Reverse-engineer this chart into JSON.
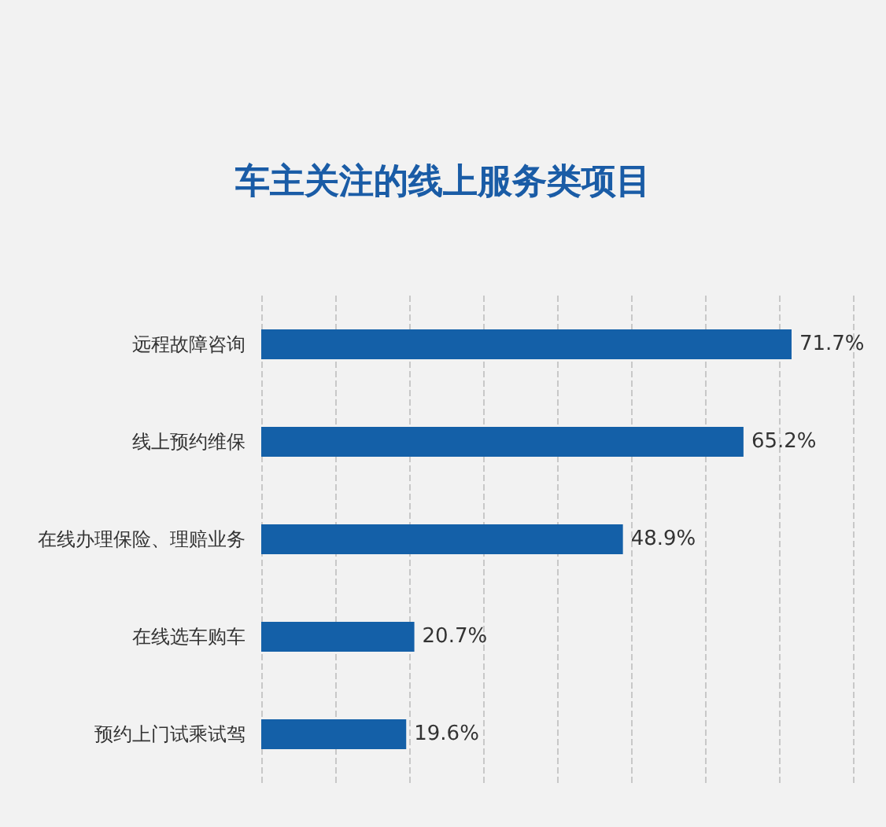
{
  "chart_data": {
    "type": "bar",
    "orientation": "horizontal",
    "title": "车主关注的线上服务类项目",
    "categories": [
      "远程故障咨询",
      "线上预约维保",
      "在线办理保险、理赔业务",
      "在线选车购车",
      "预约上门试乘试驾"
    ],
    "values": [
      71.7,
      65.2,
      48.9,
      20.7,
      19.6
    ],
    "color": "#1460a8",
    "value_labels": [
      "71.7%",
      "65.2%",
      "48.9%",
      "20.7%",
      "19.6%"
    ],
    "xlim": [
      0,
      80
    ],
    "xticks": [
      {
        "value": 0,
        "label": null
      },
      {
        "value": 10,
        "label": null
      },
      {
        "value": 20,
        "label": null
      },
      {
        "value": 30,
        "label": null
      },
      {
        "value": 40,
        "label": null
      },
      {
        "value": 50,
        "label": null
      },
      {
        "value": 60,
        "label": null
      },
      {
        "value": 70,
        "label": null
      },
      {
        "value": 80,
        "label": null
      }
    ],
    "grid": "x",
    "tick_labels": "y"
  }
}
